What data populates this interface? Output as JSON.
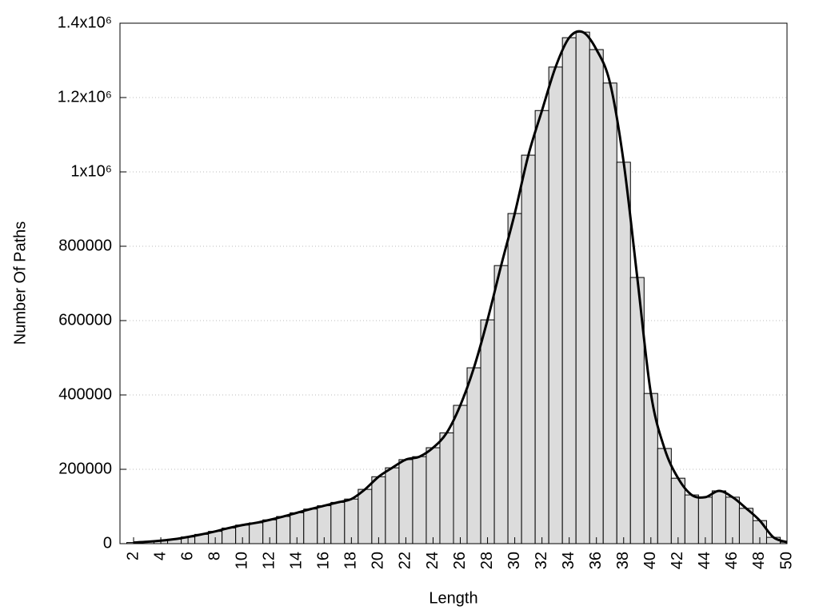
{
  "chart_data": {
    "type": "histogram",
    "x_label": "Length",
    "y_label": "Number Of Paths",
    "bins": [
      1.5,
      2.5,
      3.5,
      4.5,
      5.5,
      6.5,
      7.5,
      8.5,
      9.5,
      10.5,
      11.5,
      12.5,
      13.5,
      14.5,
      15.5,
      16.5,
      17.5,
      18.5,
      19.5,
      20.5,
      21.5,
      22.5,
      23.5,
      24.5,
      25.5,
      26.5,
      27.5,
      28.5,
      29.5,
      30.5,
      31.5,
      32.5,
      33.5,
      34.5,
      35.5,
      36.5,
      37.5,
      38.5,
      39.5,
      40.5,
      41.5,
      42.5,
      43.5,
      44.5,
      45.5,
      46.5,
      47.5,
      48.5,
      49.5,
      50.5
    ],
    "values": [
      3000,
      5000,
      8000,
      12000,
      18000,
      25000,
      33000,
      42000,
      50000,
      56000,
      64000,
      73000,
      83000,
      93000,
      102000,
      111000,
      120000,
      146000,
      180000,
      204000,
      226000,
      234000,
      258000,
      298000,
      372000,
      473000,
      602000,
      748000,
      888000,
      1045000,
      1165000,
      1282000,
      1361000,
      1376000,
      1329000,
      1239000,
      1026000,
      716000,
      404000,
      256000,
      176000,
      131000,
      125000,
      142000,
      125000,
      95000,
      62000,
      17000,
      4000
    ],
    "color": "#dcdcdc",
    "line_color": "#000000",
    "xlim": [
      1,
      50
    ],
    "xticks": [
      2,
      4,
      6,
      8,
      10,
      12,
      14,
      16,
      18,
      20,
      22,
      24,
      26,
      28,
      30,
      32,
      34,
      36,
      38,
      40,
      42,
      44,
      46,
      48,
      50
    ],
    "ylim": [
      0,
      1400000
    ],
    "yticks": [
      0,
      200000,
      400000,
      600000,
      800000,
      {
        "value": 1000000,
        "label": "1x10⁶"
      },
      {
        "value": 1200000,
        "label": "1.2x10⁶"
      },
      {
        "value": 1400000,
        "label": "1.4x10⁶"
      }
    ],
    "grid": true
  }
}
